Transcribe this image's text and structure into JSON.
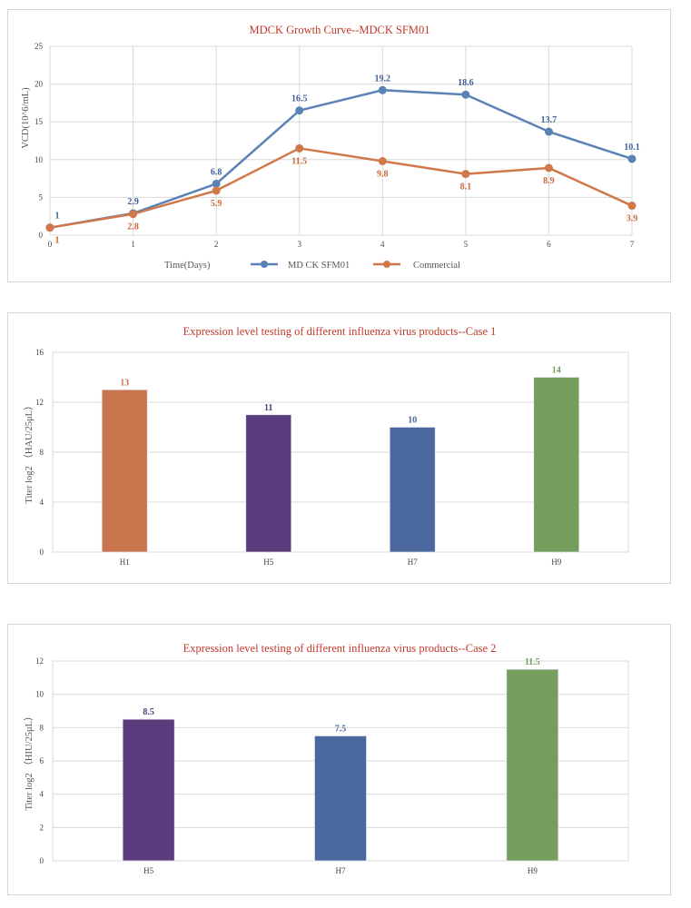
{
  "chart_data": [
    {
      "type": "line",
      "title": "MDCK Growth Curve--MDCK SFM01",
      "xlabel": "Time(Days)",
      "ylabel": "VCD(10^6/mL)",
      "x": [
        0,
        1,
        2,
        3,
        4,
        5,
        6,
        7
      ],
      "xlim": [
        0,
        7
      ],
      "ylim": [
        0,
        25
      ],
      "yticks": [
        0,
        5,
        10,
        15,
        20,
        25
      ],
      "grid": true,
      "legend_position": "bottom",
      "series": [
        {
          "name": "MD CK SFM01",
          "color": "#5b82b5",
          "label_color": "#3e5f99",
          "values": [
            1,
            2.9,
            6.8,
            16.5,
            19.2,
            18.6,
            13.7,
            10.1
          ],
          "label_position": "above"
        },
        {
          "name": "Commercial",
          "color": "#d0784a",
          "label_color": "#c9693a",
          "values": [
            1,
            2.8,
            5.9,
            11.5,
            9.8,
            8.1,
            8.9,
            3.9
          ],
          "label_position": "below"
        }
      ]
    },
    {
      "type": "bar",
      "title": "Expression level testing of different influenza virus products--Case 1",
      "xlabel": "",
      "ylabel": "Titer log2 （HAU/25μL）",
      "categories": [
        "H1",
        "H5",
        "H7",
        "H9"
      ],
      "values": [
        13,
        11,
        10,
        14
      ],
      "colors": [
        "#c8744c",
        "#5a3b7c",
        "#4a679e",
        "#759d5b"
      ],
      "ylim": [
        0,
        16
      ],
      "yticks": [
        0,
        4,
        8,
        12,
        16
      ],
      "grid": true
    },
    {
      "type": "bar",
      "title": "Expression level testing of different influenza virus products--Case 2",
      "xlabel": "",
      "ylabel": "Titer log2 （HIU/25μL）",
      "categories": [
        "H5",
        "H7",
        "H9"
      ],
      "values": [
        8.5,
        7.5,
        11.5
      ],
      "colors": [
        "#5a3b7c",
        "#4a679e",
        "#759d5b"
      ],
      "ylim": [
        0,
        12
      ],
      "yticks": [
        0,
        2,
        4,
        6,
        8,
        10,
        12
      ],
      "grid": true
    }
  ]
}
